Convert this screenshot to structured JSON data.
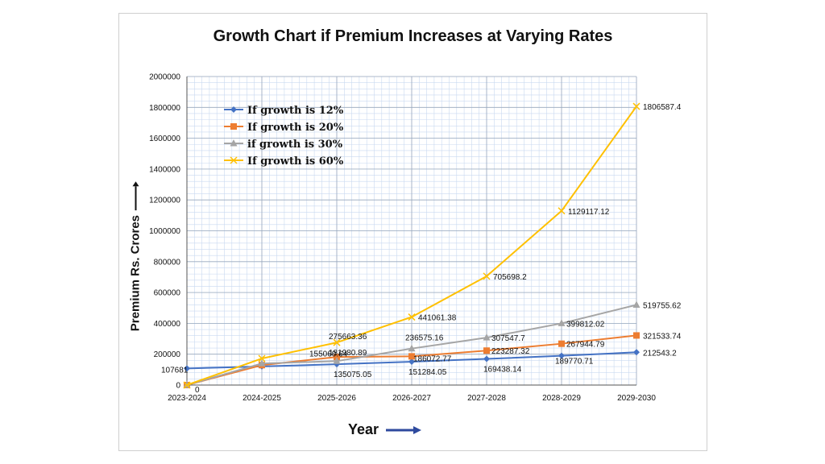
{
  "chart_data": {
    "type": "line",
    "title": "Growth Chart if Premium Increases at Varying Rates",
    "xlabel": "Year",
    "ylabel": "Premium Rs. Crores",
    "categories": [
      "2023-2024",
      "2024-2025",
      "2025-2026",
      "2026-2027",
      "2027-2028",
      "2028-2029",
      "2029-2030"
    ],
    "ylim": [
      0,
      2000000
    ],
    "yticks": [
      "0",
      "200000",
      "400000",
      "600000",
      "800000",
      "1000000",
      "1200000",
      "1400000",
      "1600000",
      "1800000",
      "2000000"
    ],
    "grid": true,
    "legend_position": "top-left",
    "series": [
      {
        "name": "If growth is 12%",
        "color": "#4472c4",
        "marker": "diamond",
        "values": [
          107681,
          120603,
          135075.05,
          151284.05,
          169438.14,
          189770.71,
          212543.2
        ],
        "labels": [
          "107681",
          "",
          "135075.05",
          "151284.05",
          "169438.14",
          "189770.71",
          "212543.2"
        ]
      },
      {
        "name": "If growth is 20%",
        "color": "#ed7d31",
        "marker": "square",
        "values": [
          0,
          129217,
          181980.89,
          186072.77,
          223287.32,
          267944.79,
          321533.74
        ],
        "labels": [
          "",
          "",
          "181980.89",
          "186072.77",
          "223287.32",
          "267944.79",
          "321533.74"
        ]
      },
      {
        "name": "if growth is 30%",
        "color": "#a5a5a5",
        "marker": "triangle",
        "values": [
          0,
          139985,
          155060.64,
          236575.16,
          307547.7,
          399812.02,
          519755.62
        ],
        "labels": [
          "0",
          "",
          "155060.64",
          "236575.16",
          "307547.7",
          "399812.02",
          "519755.62"
        ]
      },
      {
        "name": "If growth is 60%",
        "color": "#ffc000",
        "marker": "x",
        "values": [
          0,
          172289,
          275663.36,
          441061.38,
          705698.2,
          1129117.12,
          1806587.4
        ],
        "labels": [
          "",
          "",
          "275663.36",
          "441061.38",
          "705698.2",
          "1129117.12",
          "1806587.4"
        ]
      }
    ]
  }
}
